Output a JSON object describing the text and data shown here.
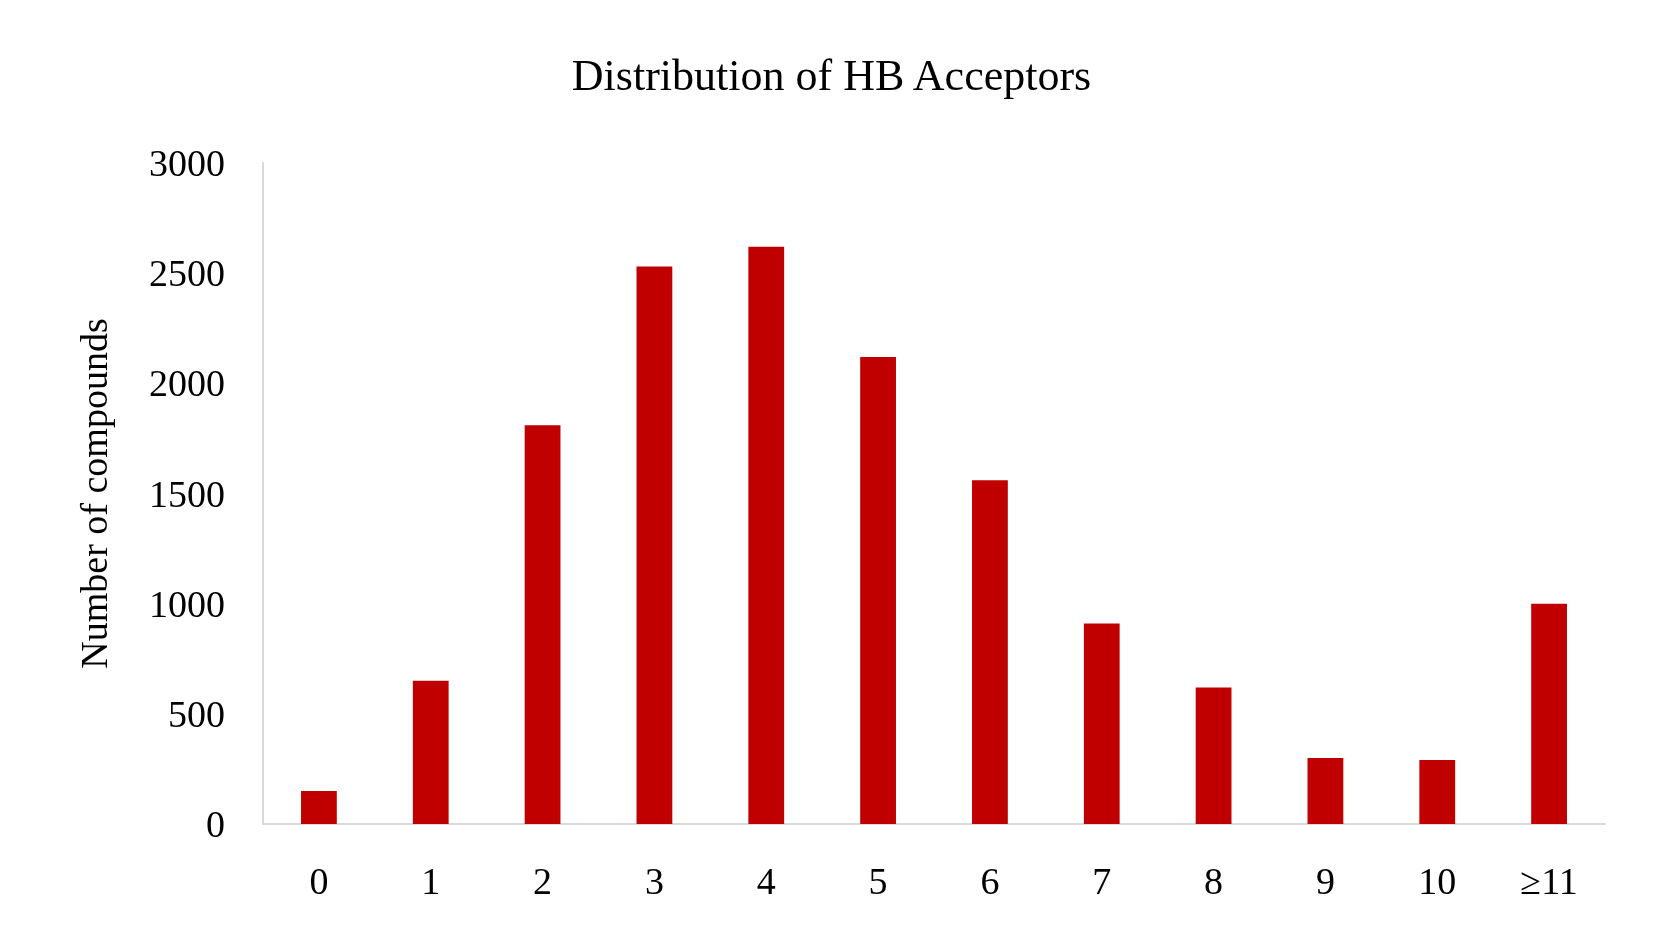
{
  "chart_data": {
    "type": "bar",
    "title": "Distribution of HB Acceptors",
    "ylabel": "Number of compounds",
    "categories": [
      "0",
      "1",
      "2",
      "3",
      "4",
      "5",
      "6",
      "7",
      "8",
      "9",
      "10",
      "≥11"
    ],
    "values": [
      150,
      650,
      1810,
      2530,
      2620,
      2120,
      1560,
      910,
      620,
      300,
      290,
      1000
    ],
    "color": "#c00000",
    "ylim": [
      0,
      3000
    ],
    "yticks": [
      0,
      500,
      1000,
      1500,
      2000,
      2500,
      3000
    ],
    "grid": false
  }
}
